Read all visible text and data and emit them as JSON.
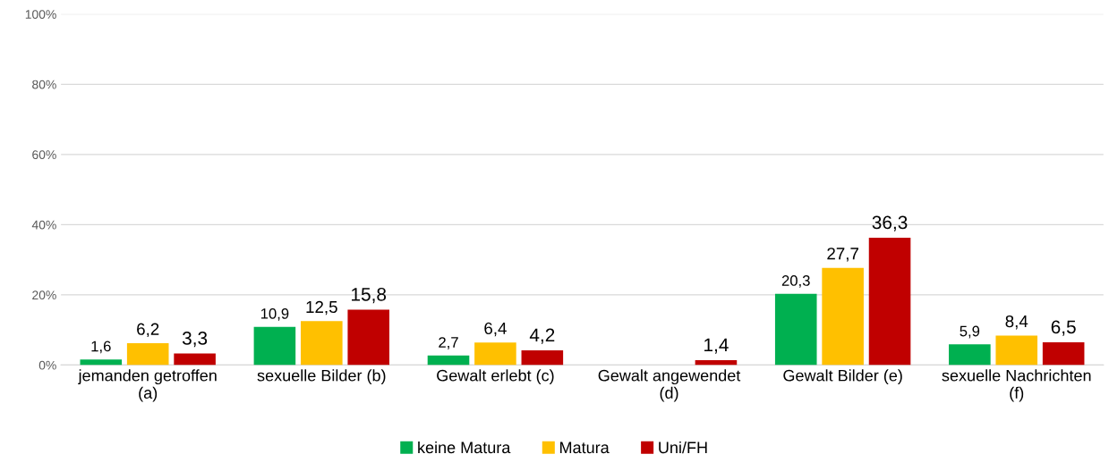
{
  "chart_data": {
    "type": "bar",
    "categories": [
      "jemanden getroffen\n(a)",
      "sexuelle Bilder (b)",
      "Gewalt erlebt (c)",
      "Gewalt angewendet\n(d)",
      "Gewalt Bilder (e)",
      "sexuelle Nachrichten\n(f)"
    ],
    "series": [
      {
        "name": "keine Matura",
        "color": "#00b050",
        "values": [
          1.6,
          10.9,
          2.7,
          null,
          20.3,
          5.9
        ],
        "value_labels": [
          "1,6",
          "10,9",
          "2,7",
          null,
          "20,3",
          "5,9"
        ]
      },
      {
        "name": "Matura",
        "color": "#ffc000",
        "values": [
          6.2,
          12.5,
          6.4,
          null,
          27.7,
          8.4
        ],
        "value_labels": [
          "6,2",
          "12,5",
          "6,4",
          null,
          "27,7",
          "8,4"
        ]
      },
      {
        "name": "Uni/FH",
        "color": "#c00000",
        "values": [
          3.3,
          15.8,
          4.2,
          1.4,
          36.3,
          6.5
        ],
        "value_labels": [
          "3,3",
          "15,8",
          "4,2",
          "1,4",
          "36,3",
          "6,5"
        ]
      }
    ],
    "ylim": [
      0,
      100
    ],
    "yticks": [
      {
        "value": 0,
        "label": "0%"
      },
      {
        "value": 20,
        "label": "20%"
      },
      {
        "value": 40,
        "label": "40%"
      },
      {
        "value": 60,
        "label": "60%"
      },
      {
        "value": 80,
        "label": "80%"
      },
      {
        "value": 100,
        "label": "100%"
      }
    ],
    "grid": "y",
    "legend": "bottom"
  }
}
